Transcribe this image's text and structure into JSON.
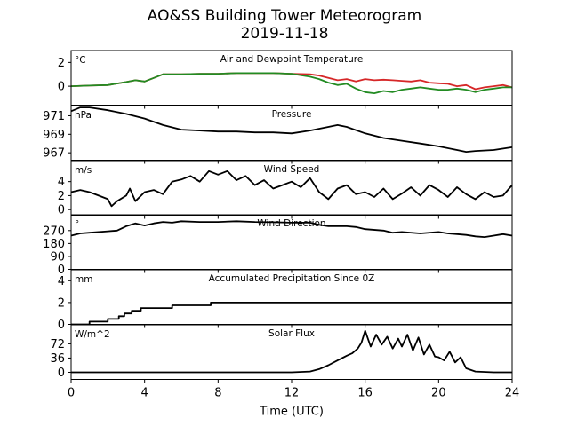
{
  "figure": {
    "title_line1": "AO&SS Building Tower Meteorogram",
    "title_line2": "2019-11-18"
  },
  "chart_data": {
    "type": "line",
    "x_label": "Time (UTC)",
    "x_range": [
      0,
      24
    ],
    "x_ticks": [
      0,
      4,
      8,
      12,
      16,
      20,
      24
    ],
    "panels": [
      {
        "title": "Air and Dewpoint Temperature",
        "unit": "°C",
        "ylim": [
          -1.6,
          3.0
        ],
        "yticks": [
          -2,
          0,
          2
        ],
        "yticks_shown": [
          0,
          2
        ],
        "ytick_labels_override": {
          "-2": "−2"
        },
        "series": [
          {
            "name": "Air Temperature",
            "color": "#d62728",
            "x": [
              0,
              1,
              2,
              3,
              3.5,
              4,
              4.5,
              5,
              6,
              7,
              8,
              9,
              10,
              11,
              12,
              13,
              13.5,
              14,
              14.5,
              15,
              15.5,
              16,
              16.5,
              17,
              17.5,
              18,
              18.5,
              19,
              19.5,
              20,
              20.5,
              21,
              21.5,
              22,
              22.5,
              23,
              23.5,
              24
            ],
            "y": [
              0,
              0.05,
              0.1,
              0.35,
              0.5,
              0.4,
              0.7,
              1.0,
              1.0,
              1.05,
              1.05,
              1.1,
              1.1,
              1.1,
              1.05,
              1.0,
              0.9,
              0.7,
              0.5,
              0.6,
              0.4,
              0.6,
              0.5,
              0.55,
              0.5,
              0.45,
              0.4,
              0.5,
              0.3,
              0.25,
              0.2,
              0.0,
              0.1,
              -0.25,
              -0.1,
              0.0,
              0.1,
              -0.1
            ]
          },
          {
            "name": "Dewpoint Temperature",
            "color": "#228b22",
            "x": [
              0,
              1,
              2,
              3,
              3.5,
              4,
              4.5,
              5,
              6,
              7,
              8,
              9,
              10,
              11,
              12,
              13,
              13.5,
              14,
              14.5,
              15,
              15.5,
              16,
              16.5,
              17,
              17.5,
              18,
              18.5,
              19,
              19.5,
              20,
              20.5,
              21,
              21.5,
              22,
              22.5,
              23,
              23.5,
              24
            ],
            "y": [
              0,
              0.05,
              0.1,
              0.35,
              0.5,
              0.4,
              0.7,
              1.0,
              1.0,
              1.05,
              1.05,
              1.1,
              1.1,
              1.1,
              1.05,
              0.8,
              0.6,
              0.3,
              0.1,
              0.2,
              -0.2,
              -0.5,
              -0.6,
              -0.4,
              -0.5,
              -0.3,
              -0.2,
              -0.1,
              -0.2,
              -0.3,
              -0.3,
              -0.2,
              -0.3,
              -0.5,
              -0.3,
              -0.2,
              -0.1,
              -0.1
            ]
          }
        ]
      },
      {
        "title": "Pressure",
        "unit": "hPa",
        "ylim": [
          966.2,
          972.1
        ],
        "yticks": [
          967,
          969,
          971
        ],
        "series": [
          {
            "name": "Pressure",
            "color": "#000000",
            "x": [
              0,
              0.5,
              1,
              2,
              3,
              4,
              5,
              6,
              7,
              8,
              9,
              10,
              11,
              12,
              13,
              14,
              14.5,
              15,
              16,
              17,
              18,
              19,
              20,
              21,
              21.5,
              22,
              23,
              24
            ],
            "y": [
              971.5,
              971.9,
              971.9,
              971.6,
              971.2,
              970.7,
              970.0,
              969.5,
              969.4,
              969.3,
              969.3,
              969.2,
              969.2,
              969.1,
              969.4,
              969.8,
              970.0,
              969.8,
              969.1,
              968.6,
              968.3,
              968.0,
              967.7,
              967.3,
              967.1,
              967.2,
              967.3,
              967.6
            ]
          }
        ]
      },
      {
        "title": "Wind Speed",
        "unit": "m/s",
        "ylim": [
          -0.8,
          7.0
        ],
        "yticks": [
          0,
          2,
          4
        ],
        "series": [
          {
            "name": "Wind Speed",
            "color": "#000000",
            "x": [
              0,
              0.5,
              1,
              1.5,
              2,
              2.2,
              2.5,
              3,
              3.2,
              3.5,
              4,
              4.5,
              5,
              5.5,
              6,
              6.5,
              7,
              7.5,
              8,
              8.5,
              9,
              9.5,
              10,
              10.5,
              11,
              11.5,
              12,
              12.5,
              13,
              13.5,
              14,
              14.5,
              15,
              15.5,
              16,
              16.5,
              17,
              17.5,
              18,
              18.5,
              19,
              19.5,
              20,
              20.5,
              21,
              21.5,
              22,
              22.5,
              23,
              23.5,
              24
            ],
            "y": [
              2.5,
              2.8,
              2.5,
              2.0,
              1.5,
              0.5,
              1.2,
              2.0,
              3.0,
              1.2,
              2.5,
              2.8,
              2.2,
              4.0,
              4.3,
              4.8,
              4.0,
              5.5,
              5.0,
              5.5,
              4.2,
              4.8,
              3.5,
              4.2,
              3.0,
              3.5,
              4.0,
              3.2,
              4.5,
              2.5,
              1.5,
              3.0,
              3.5,
              2.2,
              2.5,
              1.8,
              3.0,
              1.5,
              2.3,
              3.2,
              2.0,
              3.5,
              2.8,
              1.8,
              3.2,
              2.2,
              1.5,
              2.5,
              1.8,
              2.0,
              3.5
            ]
          }
        ]
      },
      {
        "title": "Wind Direction",
        "unit": "°",
        "ylim": [
          0,
          380
        ],
        "yticks": [
          0,
          90,
          180,
          270
        ],
        "series": [
          {
            "name": "Wind Direction",
            "color": "#000000",
            "x": [
              0,
              0.5,
              1,
              2,
              2.5,
              3,
              3.5,
              4,
              4.5,
              5,
              5.5,
              6,
              7,
              8,
              9,
              10,
              11,
              12,
              13,
              13.5,
              14,
              15,
              15.5,
              16,
              17,
              17.5,
              18,
              19,
              20,
              20.5,
              21,
              21.5,
              22,
              22.5,
              23,
              23.5,
              24
            ],
            "y": [
              235,
              250,
              255,
              265,
              270,
              300,
              320,
              305,
              320,
              330,
              325,
              335,
              330,
              330,
              335,
              330,
              328,
              325,
              325,
              310,
              300,
              300,
              295,
              280,
              270,
              255,
              260,
              250,
              260,
              250,
              245,
              240,
              230,
              225,
              235,
              245,
              235
            ]
          }
        ]
      },
      {
        "title": "Accumulated Precipitation Since 0Z",
        "unit": "mm",
        "ylim": [
          0,
          5.0
        ],
        "yticks": [
          0,
          2,
          4
        ],
        "step": true,
        "series": [
          {
            "name": "Accumulated Precipitation",
            "color": "#000000",
            "x": [
              0,
              1.0,
              2.0,
              2.6,
              2.9,
              3.3,
              3.8,
              4.3,
              5.5,
              7.6,
              24
            ],
            "y": [
              0,
              0.25,
              0.5,
              0.75,
              1.0,
              1.25,
              1.5,
              1.5,
              1.75,
              2.0,
              2.0
            ]
          }
        ]
      },
      {
        "title": "Solar Flux",
        "unit": "W/m^2",
        "ylim": [
          -18,
          120
        ],
        "yticks": [
          0,
          36,
          72
        ],
        "series": [
          {
            "name": "Solar Flux",
            "color": "#000000",
            "x": [
              0,
              12,
              13,
              13.5,
              14,
              14.5,
              15,
              15.3,
              15.6,
              15.8,
              16,
              16.3,
              16.6,
              16.9,
              17.2,
              17.5,
              17.8,
              18,
              18.3,
              18.6,
              18.9,
              19.2,
              19.5,
              19.8,
              20,
              20.3,
              20.6,
              20.9,
              21.2,
              21.5,
              22,
              23,
              24
            ],
            "y": [
              0,
              0,
              2,
              8,
              18,
              30,
              42,
              48,
              60,
              75,
              105,
              65,
              95,
              70,
              90,
              60,
              85,
              65,
              95,
              55,
              88,
              45,
              70,
              40,
              38,
              30,
              52,
              25,
              38,
              10,
              2,
              0,
              0
            ]
          }
        ]
      }
    ]
  }
}
